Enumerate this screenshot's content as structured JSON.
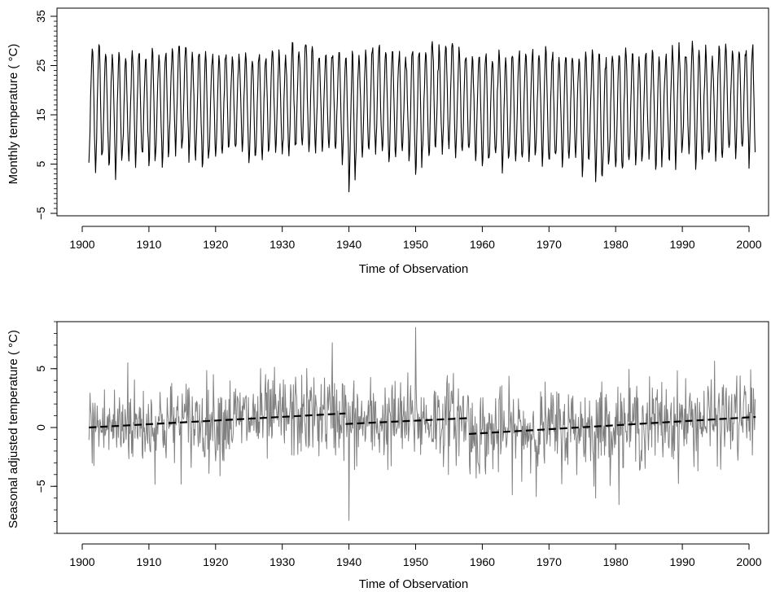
{
  "chart_data": [
    {
      "type": "line",
      "xlabel": "Time of Observation",
      "ylabel": "Monthly temperature ( °C)",
      "xlim": [
        1900,
        2000
      ],
      "ylim": [
        -5,
        35
      ],
      "xticks": [
        1900,
        1910,
        1920,
        1930,
        1940,
        1950,
        1960,
        1970,
        1980,
        1990,
        2000
      ],
      "yticks": [
        -5,
        5,
        15,
        25,
        35
      ],
      "ytick_labels": [
        "−5",
        "5",
        "15",
        "25",
        "35"
      ],
      "grid": false,
      "series": [
        {
          "color": "#000000",
          "style": "solid",
          "x_range": [
            1901,
            2001
          ],
          "monthly_climatology": [
            6.5,
            8.5,
            12.5,
            17.5,
            21.5,
            25.5,
            27.5,
            27.0,
            23.0,
            18.0,
            13.0,
            8.5
          ],
          "annual_summer_peaks": [
            28.2,
            29.4,
            26.5,
            27.5,
            27.0,
            26.0,
            27.0,
            27.5,
            26.5,
            28.0,
            26.5,
            27.5,
            28.5,
            29.0,
            28.5,
            27.0,
            27.0,
            27.5,
            27.0,
            26.5,
            27.5,
            26.5,
            27.0,
            27.5,
            26.5,
            27.0,
            27.5,
            28.0,
            27.0,
            26.5,
            29.5,
            28.5,
            29.0,
            28.0,
            27.5,
            27.0,
            28.0,
            27.5,
            27.0,
            26.5,
            27.5,
            27.0,
            28.0,
            28.0,
            27.5,
            28.0,
            27.5,
            27.0,
            28.5,
            27.5,
            27.5,
            29.5,
            28.0,
            28.5,
            29.5,
            28.0,
            27.5,
            26.5,
            27.0,
            28.0,
            26.5,
            27.5,
            26.5,
            27.0,
            27.5,
            26.5,
            27.5,
            27.0,
            28.0,
            27.0,
            26.5,
            26.5,
            27.0,
            26.5,
            27.5,
            27.5,
            28.0,
            26.5,
            27.5,
            27.0,
            28.5,
            27.5,
            26.5,
            27.0,
            28.0,
            26.5,
            27.0,
            28.5,
            28.0,
            27.0,
            29.0,
            27.5,
            28.0,
            26.5,
            28.5,
            29.0,
            27.5,
            28.0,
            28.5,
            29.0
          ],
          "annual_winter_troughs": [
            5.5,
            4.0,
            6.5,
            5.0,
            3.0,
            6.5,
            7.0,
            5.5,
            7.0,
            4.5,
            6.5,
            5.0,
            8.0,
            7.0,
            8.5,
            6.0,
            7.0,
            3.5,
            7.5,
            6.5,
            7.0,
            7.5,
            8.5,
            7.0,
            4.5,
            7.0,
            6.5,
            8.0,
            7.5,
            7.0,
            7.0,
            8.0,
            9.0,
            7.5,
            8.5,
            7.5,
            8.0,
            7.0,
            5.0,
            -0.5,
            6.5,
            7.0,
            8.5,
            7.5,
            7.0,
            5.5,
            7.0,
            8.0,
            4.5,
            3.0,
            7.0,
            6.5,
            8.0,
            7.5,
            8.5,
            6.5,
            7.0,
            7.5,
            6.0,
            4.0,
            5.5,
            6.5,
            3.5,
            6.0,
            4.5,
            6.5,
            5.0,
            7.0,
            4.5,
            5.0,
            6.5,
            4.5,
            5.5,
            6.5,
            4.0,
            6.0,
            1.5,
            2.5,
            5.0,
            4.5,
            3.5,
            6.0,
            5.0,
            7.0,
            6.0,
            3.0,
            7.5,
            6.5,
            5.5,
            8.0,
            7.0,
            4.5,
            6.5,
            7.5,
            5.5,
            7.0,
            8.0,
            6.0,
            8.0,
            4.5
          ]
        }
      ]
    },
    {
      "type": "line",
      "xlabel": "Time of Observation",
      "ylabel": "Seasonal adjusted temperature ( °C)",
      "xlim": [
        1900,
        2000
      ],
      "ylim": [
        -9,
        9
      ],
      "xticks": [
        1900,
        1910,
        1920,
        1930,
        1940,
        1950,
        1960,
        1970,
        1980,
        1990,
        2000
      ],
      "yticks": [
        -5,
        0,
        5
      ],
      "ytick_labels": [
        "−5",
        "0",
        "5"
      ],
      "grid": false,
      "series": [
        {
          "style": "solid",
          "color": "#808080",
          "x_range": [
            1901,
            2001
          ],
          "std_dev": 1.8,
          "notable_points": [
            {
              "x": 1906.8,
              "y": 5.5
            },
            {
              "x": 1937.5,
              "y": 7.2
            },
            {
              "x": 1940.0,
              "y": -7.9
            },
            {
              "x": 1950.0,
              "y": 8.5
            },
            {
              "x": 1977.0,
              "y": -6.0
            }
          ]
        },
        {
          "style": "dashed",
          "color": "#000000",
          "segments": [
            {
              "x": [
                1901,
                1939.5
              ],
              "y": [
                0.0,
                1.2
              ]
            },
            {
              "x": [
                1939.5,
                1958.0
              ],
              "y": [
                0.3,
                0.8
              ]
            },
            {
              "x": [
                1958.0,
                2001.0
              ],
              "y": [
                -0.55,
                0.9
              ]
            }
          ]
        }
      ]
    }
  ]
}
